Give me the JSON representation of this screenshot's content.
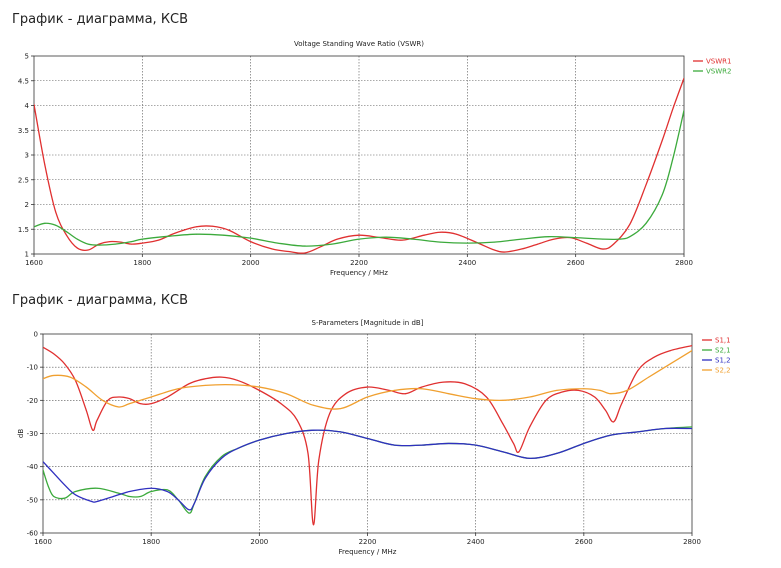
{
  "page": {
    "heading1": "График - диаграмма, КСВ",
    "heading2": "График - диаграмма, КСВ"
  },
  "chart_data": [
    {
      "type": "line",
      "title": "Voltage Standing Wave Ratio (VSWR)",
      "xlabel": "Frequency / MHz",
      "ylabel": "",
      "xlim": [
        1600,
        2800
      ],
      "ylim": [
        1,
        5
      ],
      "xticks": [
        1600,
        1800,
        2000,
        2200,
        2400,
        2600,
        2800
      ],
      "yticks": [
        1,
        1.5,
        2,
        2.5,
        3,
        3.5,
        4,
        4.5,
        5
      ],
      "grid": true,
      "legend_position": "right",
      "series": [
        {
          "name": "VSWR1",
          "color": "#e03030",
          "x": [
            1600,
            1620,
            1640,
            1660,
            1680,
            1700,
            1720,
            1740,
            1760,
            1780,
            1800,
            1830,
            1860,
            1900,
            1930,
            1960,
            2000,
            2040,
            2070,
            2100,
            2130,
            2160,
            2200,
            2240,
            2280,
            2320,
            2350,
            2380,
            2420,
            2450,
            2470,
            2500,
            2530,
            2560,
            2590,
            2620,
            2650,
            2670,
            2700,
            2730,
            2760,
            2780,
            2800
          ],
          "y": [
            4.02,
            2.8,
            1.85,
            1.38,
            1.12,
            1.08,
            1.2,
            1.25,
            1.24,
            1.2,
            1.22,
            1.28,
            1.42,
            1.55,
            1.56,
            1.48,
            1.25,
            1.1,
            1.05,
            1.02,
            1.15,
            1.3,
            1.38,
            1.33,
            1.28,
            1.38,
            1.44,
            1.4,
            1.22,
            1.08,
            1.04,
            1.1,
            1.2,
            1.3,
            1.33,
            1.22,
            1.1,
            1.2,
            1.6,
            2.4,
            3.3,
            3.95,
            4.55
          ]
        },
        {
          "name": "VSWR2",
          "color": "#3caa3c",
          "x": [
            1600,
            1620,
            1640,
            1660,
            1680,
            1700,
            1720,
            1750,
            1780,
            1800,
            1850,
            1900,
            1950,
            2000,
            2050,
            2100,
            2150,
            2200,
            2250,
            2300,
            2350,
            2400,
            2450,
            2500,
            2550,
            2600,
            2650,
            2680,
            2700,
            2730,
            2760,
            2780,
            2800
          ],
          "y": [
            1.55,
            1.62,
            1.58,
            1.45,
            1.3,
            1.2,
            1.18,
            1.2,
            1.25,
            1.3,
            1.36,
            1.4,
            1.38,
            1.32,
            1.22,
            1.16,
            1.2,
            1.3,
            1.34,
            1.3,
            1.24,
            1.22,
            1.24,
            1.3,
            1.35,
            1.33,
            1.3,
            1.3,
            1.35,
            1.62,
            2.2,
            2.95,
            3.9
          ]
        }
      ]
    },
    {
      "type": "line",
      "title": "S-Parameters [Magnitude in dB]",
      "xlabel": "Frequency / MHz",
      "ylabel": "dB",
      "xlim": [
        1600,
        2800
      ],
      "ylim": [
        -60,
        0
      ],
      "xticks": [
        1600,
        1800,
        2000,
        2200,
        2400,
        2600,
        2800
      ],
      "yticks": [
        0,
        -10,
        -20,
        -30,
        -40,
        -50,
        -60
      ],
      "grid": true,
      "legend_position": "right",
      "series": [
        {
          "name": "S1,1",
          "color": "#e03030",
          "x": [
            1600,
            1620,
            1640,
            1660,
            1680,
            1692,
            1700,
            1720,
            1740,
            1760,
            1780,
            1800,
            1830,
            1870,
            1900,
            1930,
            1960,
            2000,
            2040,
            2070,
            2090,
            2100,
            2110,
            2130,
            2160,
            2200,
            2240,
            2270,
            2300,
            2340,
            2380,
            2420,
            2450,
            2470,
            2480,
            2500,
            2530,
            2560,
            2590,
            2620,
            2640,
            2655,
            2670,
            2700,
            2730,
            2760,
            2800
          ],
          "y": [
            -4,
            -6,
            -9,
            -14,
            -23,
            -29,
            -26,
            -20,
            -19,
            -19.5,
            -21,
            -21,
            -19,
            -15,
            -13.5,
            -13,
            -14,
            -17,
            -21,
            -26,
            -36,
            -57.5,
            -38,
            -24,
            -18,
            -16,
            -17,
            -18,
            -16,
            -14.5,
            -15,
            -19,
            -27,
            -33,
            -35.5,
            -28,
            -20,
            -17.5,
            -17,
            -19,
            -23,
            -26.5,
            -21,
            -11,
            -7,
            -5,
            -3.5
          ]
        },
        {
          "name": "S2,1",
          "color": "#3caa3c",
          "x": [
            1600,
            1610,
            1620,
            1640,
            1660,
            1700,
            1740,
            1760,
            1780,
            1800,
            1830,
            1850,
            1870,
            1880,
            1900,
            1930,
            1960,
            2000,
            2050,
            2100,
            2150,
            2200,
            2250,
            2300,
            2350,
            2400,
            2450,
            2500,
            2550,
            2600,
            2650,
            2700,
            2750,
            2800
          ],
          "y": [
            -41,
            -46,
            -49,
            -49.5,
            -47.5,
            -46.5,
            -48,
            -49,
            -49,
            -47.5,
            -47,
            -50,
            -54,
            -51,
            -43,
            -37,
            -34.5,
            -32,
            -30,
            -29,
            -29.5,
            -31.5,
            -33.5,
            -33.5,
            -33,
            -33.5,
            -35.5,
            -37.5,
            -36,
            -33,
            -30.5,
            -29.5,
            -28.5,
            -28
          ]
        },
        {
          "name": "S1,2",
          "color": "#3030c0",
          "x": [
            1600,
            1620,
            1640,
            1660,
            1690,
            1700,
            1730,
            1760,
            1800,
            1830,
            1850,
            1870,
            1880,
            1900,
            1930,
            1960,
            2000,
            2050,
            2100,
            2150,
            2200,
            2250,
            2300,
            2350,
            2400,
            2450,
            2500,
            2550,
            2600,
            2650,
            2700,
            2750,
            2800
          ],
          "y": [
            -38.5,
            -42,
            -45.5,
            -48.5,
            -50.5,
            -50.5,
            -49,
            -47.5,
            -46.5,
            -47.5,
            -50,
            -53,
            -51,
            -43.5,
            -37.5,
            -34.5,
            -32,
            -30,
            -29,
            -29.5,
            -31.5,
            -33.5,
            -33.5,
            -33,
            -33.5,
            -35.5,
            -37.5,
            -36,
            -33,
            -30.5,
            -29.5,
            -28.5,
            -28.5
          ]
        },
        {
          "name": "S2,2",
          "color": "#f0a030",
          "x": [
            1600,
            1620,
            1650,
            1680,
            1710,
            1740,
            1760,
            1800,
            1850,
            1900,
            1950,
            2000,
            2050,
            2100,
            2150,
            2200,
            2250,
            2300,
            2350,
            2400,
            2450,
            2500,
            2550,
            2600,
            2630,
            2650,
            2680,
            2720,
            2760,
            2800
          ],
          "y": [
            -13.5,
            -12.5,
            -13,
            -16,
            -20,
            -22,
            -21,
            -19,
            -16.5,
            -15.5,
            -15.3,
            -16,
            -18,
            -21.5,
            -22.5,
            -19,
            -17,
            -16.5,
            -18,
            -19.5,
            -20,
            -19,
            -17,
            -16.5,
            -17,
            -18,
            -17,
            -13,
            -9,
            -5
          ]
        }
      ]
    }
  ]
}
